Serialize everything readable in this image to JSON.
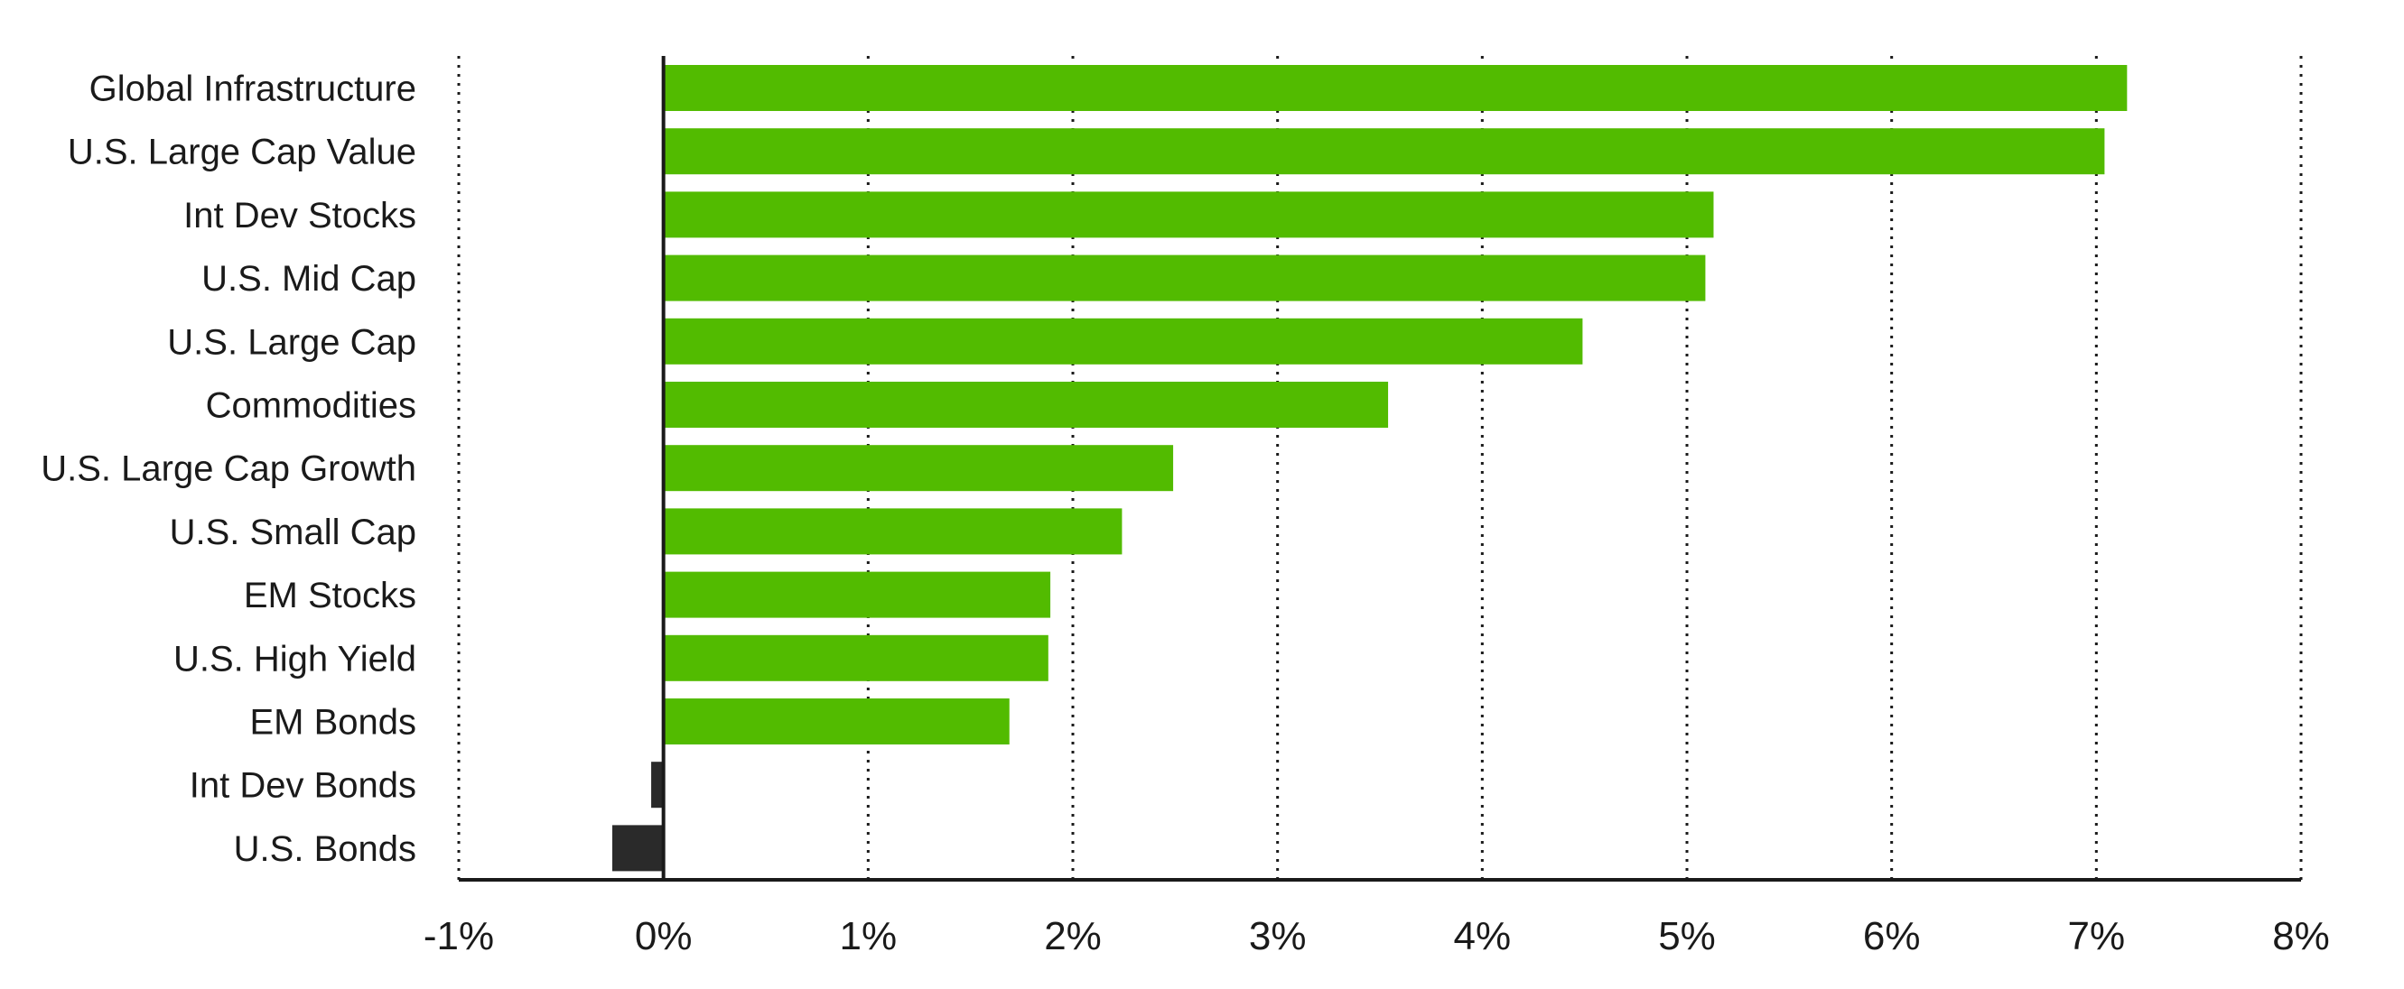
{
  "chart_data": {
    "type": "bar",
    "orientation": "horizontal",
    "categories": [
      "Global Infrastructure",
      "U.S. Large Cap Value",
      "Int Dev Stocks",
      "U.S. Mid Cap",
      "U.S. Large Cap",
      "Commodities",
      "U.S. Large Cap Growth",
      "U.S. Small Cap",
      "EM Stocks",
      "U.S. High Yield",
      "EM Bonds",
      "Int Dev Bonds",
      "U.S. Bonds"
    ],
    "values": [
      7.15,
      7.04,
      5.13,
      5.09,
      4.49,
      3.54,
      2.49,
      2.24,
      1.89,
      1.88,
      1.69,
      -0.06,
      -0.25
    ],
    "xlim": [
      -1,
      8
    ],
    "xticks": [
      -1,
      0,
      1,
      2,
      3,
      4,
      5,
      6,
      7,
      8
    ],
    "tick_labels": [
      "-1%",
      "0%",
      "1%",
      "2%",
      "3%",
      "4%",
      "5%",
      "6%",
      "7%",
      "8%"
    ],
    "grid": "vertical-dotted",
    "title": "",
    "xlabel": "",
    "ylabel": "",
    "colors": {
      "positive": "#52bb00",
      "negative": "#2a2a2a",
      "axis": "#1a1a1a"
    }
  }
}
